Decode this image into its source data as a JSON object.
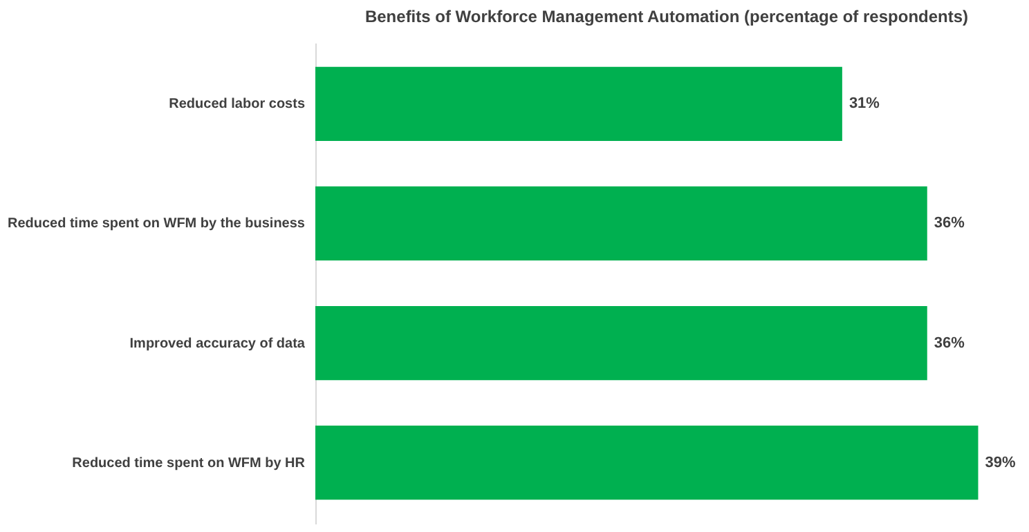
{
  "chart_data": {
    "type": "bar",
    "orientation": "horizontal",
    "title": "Benefits of Workforce Management Automation (percentage of respondents)",
    "categories": [
      "Reduced labor costs",
      "Reduced time spent on WFM by the business",
      "Improved accuracy of data",
      "Reduced time spent on WFM by HR"
    ],
    "values": [
      31,
      36,
      36,
      39
    ],
    "color": "#00b050",
    "value_labels": [
      "31%",
      "36%",
      "36%",
      "39%"
    ]
  }
}
